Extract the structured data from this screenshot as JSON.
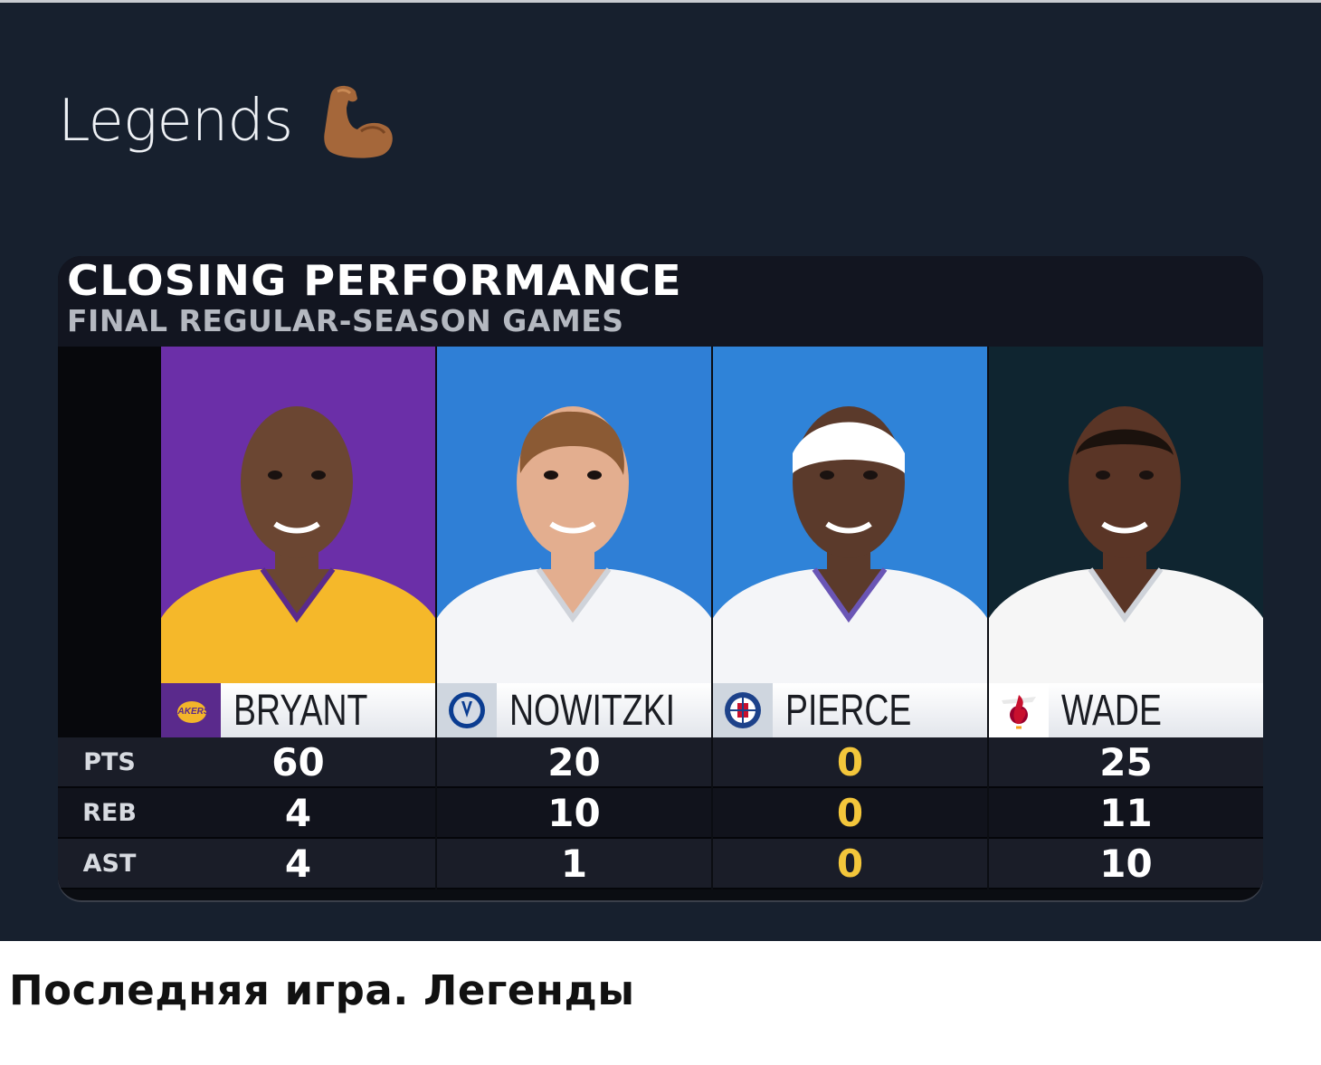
{
  "tweet": {
    "text": "Legends",
    "emoji_icon": "flexed-biceps-icon"
  },
  "graphic": {
    "title": "CLOSING PERFORMANCE",
    "subtitle": "FINAL REGULAR-SEASON GAMES",
    "stat_labels": [
      "PTS",
      "REB",
      "AST"
    ],
    "players": [
      {
        "name": "BRYANT",
        "team_logo": "lakers-logo-icon",
        "bg": "#6b2fa8",
        "jersey": "#f5b82a",
        "skin": "#6b4632",
        "pts": "60",
        "reb": "4",
        "ast": "4"
      },
      {
        "name": "NOWITZKI",
        "team_logo": "mavericks-logo-icon",
        "bg": "#2f7fd6",
        "jersey": "#f4f5f8",
        "skin": "#e3ae8f",
        "pts": "20",
        "reb": "10",
        "ast": "1"
      },
      {
        "name": "PIERCE",
        "team_logo": "clippers-logo-icon",
        "bg": "#2f83d8",
        "jersey": "#f4f5f8",
        "skin": "#5b3a2b",
        "pts": "0",
        "reb": "0",
        "ast": "0"
      },
      {
        "name": "WADE",
        "team_logo": "heat-logo-icon",
        "bg": "#0f2530",
        "jersey": "#f6f6f6",
        "skin": "#5a3526",
        "pts": "25",
        "reb": "11",
        "ast": "10"
      }
    ]
  },
  "caption": "Последняя игра. Легенды",
  "colors": {
    "zero_highlight": "#f3c63b",
    "background": "#17202e"
  }
}
